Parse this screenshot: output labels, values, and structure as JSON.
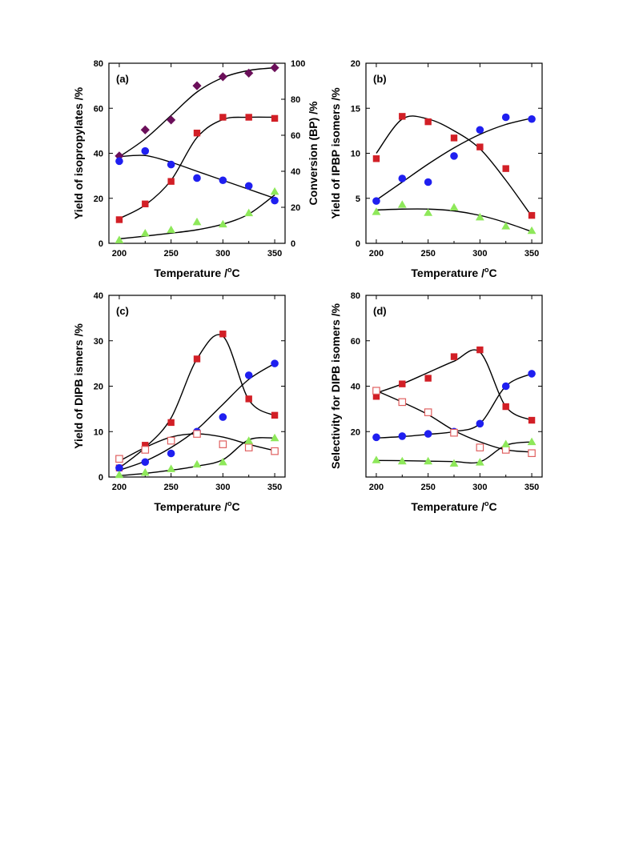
{
  "colors": {
    "red_square": "#d21f26",
    "blue_circle": "#1f1ff0",
    "green_triangle": "#8ee85a",
    "purple_diamond": "#6b0f5a",
    "open_square": "#e06060",
    "curve": "#000000"
  },
  "chart_data": [
    {
      "id": "a",
      "type": "scatter",
      "panel_label": "(a)",
      "xlabel": "Temperature /oC",
      "ylabel": "Yield of isopropylates /%",
      "y2label": "Conversion (BP) /%",
      "xlim": [
        190,
        360
      ],
      "ylim": [
        0,
        80
      ],
      "y2lim": [
        0,
        100
      ],
      "xticks": [
        200,
        250,
        300,
        350
      ],
      "yticks": [
        0,
        20,
        40,
        60,
        80
      ],
      "y2ticks": [
        0,
        20,
        40,
        60,
        80,
        100
      ],
      "x": [
        200,
        225,
        250,
        275,
        300,
        325,
        350
      ],
      "series": [
        {
          "marker": "diamond",
          "color": "#6b0f5a",
          "axis": "y2",
          "values": [
            48.5,
            63,
            68.5,
            87.5,
            92.5,
            94.5,
            97.5
          ],
          "fit": [
            48,
            58,
            71,
            84,
            92,
            96,
            97.5
          ]
        },
        {
          "marker": "circle",
          "color": "#1f1ff0",
          "axis": "y",
          "values": [
            36.5,
            41,
            35,
            29,
            28,
            25.5,
            19
          ],
          "fit": [
            38.5,
            39,
            36,
            32,
            28,
            24,
            20
          ]
        },
        {
          "marker": "square",
          "color": "#d21f26",
          "axis": "y",
          "values": [
            10.5,
            17.5,
            27.5,
            49,
            56,
            56,
            55.5
          ],
          "fit": [
            11,
            17,
            28,
            47,
            55,
            56,
            56
          ]
        },
        {
          "marker": "triangle",
          "color": "#8ee85a",
          "axis": "y",
          "values": [
            1.5,
            4.5,
            6,
            9.5,
            8.5,
            13.5,
            23
          ],
          "fit": [
            2,
            3.2,
            4.5,
            6,
            8.5,
            13,
            21.5
          ]
        }
      ]
    },
    {
      "id": "b",
      "type": "scatter",
      "panel_label": "(b)",
      "xlabel": "Temperature /oC",
      "ylabel": "Yield of IPBP isomers /%",
      "xlim": [
        190,
        360
      ],
      "ylim": [
        0,
        20
      ],
      "xticks": [
        200,
        250,
        300,
        350
      ],
      "yticks": [
        0,
        5,
        10,
        15,
        20
      ],
      "x": [
        200,
        225,
        250,
        275,
        300,
        325,
        350
      ],
      "series": [
        {
          "marker": "square",
          "color": "#d21f26",
          "values": [
            9.4,
            14.1,
            13.5,
            11.7,
            10.7,
            8.3,
            3.1
          ],
          "fit": [
            10,
            13.8,
            13.8,
            12.5,
            10.5,
            7,
            3
          ]
        },
        {
          "marker": "circle",
          "color": "#1f1ff0",
          "values": [
            4.7,
            7.2,
            6.8,
            9.7,
            12.6,
            14,
            13.8
          ],
          "fit": [
            4.8,
            6.8,
            8.8,
            10.6,
            12.1,
            13.2,
            13.9
          ]
        },
        {
          "marker": "triangle",
          "color": "#8ee85a",
          "values": [
            3.5,
            4.3,
            3.4,
            4,
            2.9,
            1.9,
            1.4
          ],
          "fit": [
            3.7,
            3.8,
            3.8,
            3.6,
            3.1,
            2.3,
            1.3
          ]
        }
      ]
    },
    {
      "id": "c",
      "type": "scatter",
      "panel_label": "(c)",
      "xlabel": "Temperature /oC",
      "ylabel": "Yield of DIPB ismers /%",
      "xlim": [
        190,
        360
      ],
      "ylim": [
        0,
        40
      ],
      "xticks": [
        200,
        250,
        300,
        350
      ],
      "yticks": [
        0,
        10,
        20,
        30,
        40
      ],
      "x": [
        200,
        225,
        250,
        275,
        300,
        325,
        350
      ],
      "series": [
        {
          "marker": "square",
          "color": "#d21f26",
          "values": [
            2,
            7,
            12,
            26,
            31.5,
            17.2,
            13.6
          ],
          "fit": [
            2,
            6.5,
            13,
            26,
            31,
            17,
            13.5
          ]
        },
        {
          "marker": "circle",
          "color": "#1f1ff0",
          "values": [
            2,
            3.3,
            5.2,
            10,
            13.2,
            22.4,
            25
          ],
          "fit": [
            1.5,
            3.5,
            6.5,
            10.5,
            16,
            21.5,
            25
          ]
        },
        {
          "marker": "open-square",
          "color": "#e06060",
          "values": [
            4,
            6,
            8,
            9.5,
            7.2,
            6.5,
            5.7
          ],
          "fit": [
            3.5,
            6.5,
            8.8,
            9.5,
            8.8,
            7.2,
            5.8
          ]
        },
        {
          "marker": "triangle",
          "color": "#8ee85a",
          "values": [
            0.5,
            1,
            1.8,
            2.8,
            3.3,
            8,
            8.6
          ],
          "fit": [
            0.3,
            0.8,
            1.5,
            2.4,
            3.8,
            8.2,
            8.6
          ]
        }
      ]
    },
    {
      "id": "d",
      "type": "scatter",
      "panel_label": "(d)",
      "xlabel": "Temperature /oC",
      "ylabel": "Selectivity for DIPB isomers /%",
      "xlim": [
        190,
        360
      ],
      "ylim": [
        0,
        80
      ],
      "xticks": [
        200,
        250,
        300,
        350
      ],
      "yticks": [
        20,
        40,
        60,
        80
      ],
      "x": [
        200,
        225,
        250,
        275,
        300,
        325,
        350
      ],
      "series": [
        {
          "marker": "square",
          "color": "#d21f26",
          "values": [
            35.5,
            41,
            43.5,
            53,
            56,
            31,
            25
          ],
          "fit": [
            37,
            41,
            46,
            51,
            55,
            31,
            25
          ]
        },
        {
          "marker": "circle",
          "color": "#1f1ff0",
          "values": [
            17.5,
            18,
            19,
            20,
            23.5,
            40,
            45.5
          ],
          "fit": [
            17.2,
            17.8,
            18.8,
            20,
            23.5,
            40,
            45.5
          ]
        },
        {
          "marker": "open-square",
          "color": "#e06060",
          "values": [
            38,
            33,
            28.5,
            19.5,
            13,
            12,
            10.5
          ],
          "fit": [
            38,
            33,
            27.5,
            20.5,
            15.5,
            12,
            11
          ]
        },
        {
          "marker": "triangle",
          "color": "#8ee85a",
          "values": [
            7.5,
            7,
            7,
            6,
            6.5,
            14.5,
            15.5
          ],
          "fit": [
            7.3,
            7.2,
            7,
            6.8,
            6.7,
            14,
            15.5
          ]
        }
      ]
    }
  ]
}
